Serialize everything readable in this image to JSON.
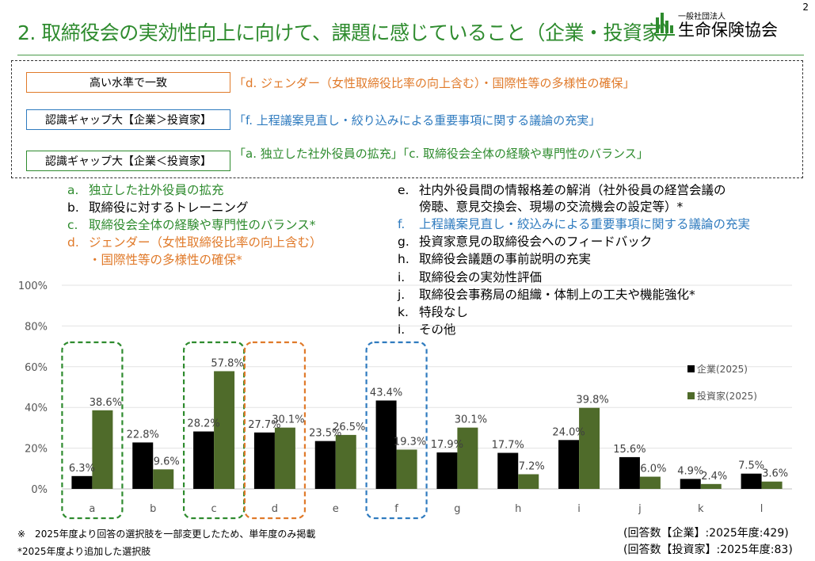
{
  "page": {
    "title": "2. 取締役会の実効性向上に向けて、課題に感じていること（企業・投資家）",
    "page_number": "2",
    "logo_small": "一般社団法人",
    "logo_main": "生命保険協会"
  },
  "summary": [
    {
      "tag": "高い水準で一致",
      "text": "「d. ジェンダー（女性取締役比率の向上含む）・国際性等の多様性の確保」",
      "color": "#e07a2a"
    },
    {
      "tag": "認識ギャップ大【企業＞投資家】",
      "text": "「f. 上程議案見直し・絞り込みによる重要事項に関する議論の充実」",
      "color": "#2f7bbf"
    },
    {
      "tag": "認識ギャップ大【企業＜投資家】",
      "text": "「a. 独立した社外役員の拡充」「c. 取締役会全体の経験や専門性のバランス」",
      "color": "#2e8b2e"
    }
  ],
  "legend_left": [
    {
      "key": "a.",
      "text": "独立した社外役員の拡充",
      "color": "#2e8b2e"
    },
    {
      "key": "b.",
      "text": "取締役に対するトレーニング",
      "color": "#000000"
    },
    {
      "key": "c.",
      "text": "取締役会全体の経験や専門性のバランス*",
      "color": "#2e8b2e"
    },
    {
      "key": "d.",
      "text": "ジェンダー（女性取締役比率の向上含む）",
      "color": "#e07a2a"
    },
    {
      "key": "",
      "text": "・国際性等の多様性の確保*",
      "color": "#e07a2a"
    }
  ],
  "legend_right": [
    {
      "key": "e.",
      "text": "社内外役員間の情報格差の解消（社外役員の経営会議の",
      "color": "#000000"
    },
    {
      "key": "",
      "text": "傍聴、意見交換会、現場の交流機会の設定等）*",
      "color": "#000000"
    },
    {
      "key": "f.",
      "text": "上程議案見直し・絞込みによる重要事項に関する議論の充実",
      "color": "#2f7bbf"
    },
    {
      "key": "g.",
      "text": "投資家意見の取締役会へのフィードバック",
      "color": "#000000"
    },
    {
      "key": "h.",
      "text": "取締役会議題の事前説明の充実",
      "color": "#000000"
    },
    {
      "key": "i.",
      "text": "取締役会の実効性評価",
      "color": "#000000"
    },
    {
      "key": "j.",
      "text": "取締役会事務局の組織・体制上の工夫や機能強化*",
      "color": "#000000"
    },
    {
      "key": "k.",
      "text": "特段なし",
      "color": "#000000"
    },
    {
      "key": "l.",
      "text": "その他",
      "color": "#000000"
    }
  ],
  "chart_data": {
    "type": "bar",
    "categories": [
      "a",
      "b",
      "c",
      "d",
      "e",
      "f",
      "g",
      "h",
      "i",
      "j",
      "k",
      "l"
    ],
    "series": [
      {
        "name": "企業(2025)",
        "color": "#000000",
        "values": [
          6.3,
          22.8,
          28.2,
          27.7,
          23.5,
          43.4,
          17.9,
          17.7,
          24.0,
          15.6,
          4.9,
          7.5
        ]
      },
      {
        "name": "投資家(2025)",
        "color": "#4f6b2a",
        "values": [
          38.6,
          9.6,
          57.8,
          30.1,
          26.5,
          19.3,
          30.1,
          7.2,
          39.8,
          6.0,
          2.4,
          3.6
        ]
      }
    ],
    "labels_series1": [
      "6.3%",
      "22.8%",
      "28.2%",
      "27.7%",
      "23.5%",
      "43.4%",
      "17.9%",
      "17.7%",
      "24.0%",
      "15.6%",
      "4.9%",
      "7.5%"
    ],
    "labels_series2": [
      "38.6%",
      "9.6%",
      "57.8%",
      "30.1%",
      "26.5%",
      "19.3%",
      "30.1%",
      "7.2%",
      "39.8%",
      "6.0%",
      "2.4%",
      "3.6%"
    ],
    "y_ticks": [
      "0%",
      "20%",
      "40%",
      "60%",
      "80%",
      "100%"
    ],
    "ylim": [
      0,
      100
    ],
    "grid": true,
    "legend_position": "right",
    "highlights": [
      {
        "category": "a",
        "color": "#2e8b2e"
      },
      {
        "category": "c",
        "color": "#2e8b2e"
      },
      {
        "category": "d",
        "color": "#e07a2a"
      },
      {
        "category": "f",
        "color": "#2f7bbf"
      }
    ]
  },
  "footer": {
    "note1": "※　2025年度より回答の選択肢を一部変更したため、単年度のみ掲載",
    "note2": "*2025年度より追加した選択肢",
    "resp1": "(回答数【企業】:2025年度:429)",
    "resp2": "(回答数【投資家】:2025年度:83)"
  }
}
